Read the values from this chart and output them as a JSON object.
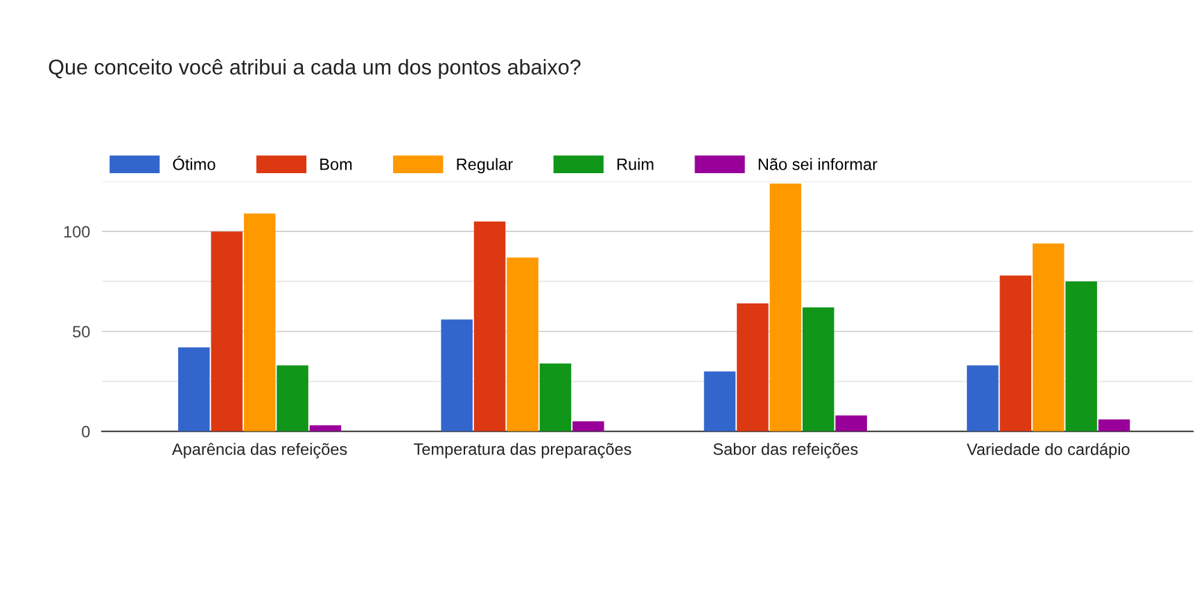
{
  "chart_data": {
    "type": "bar",
    "title": "Que conceito você atribui a cada um dos pontos abaixo?",
    "categories": [
      "Aparência das refeições",
      "Temperatura das preparações",
      "Sabor das refeições",
      "Variedade do cardápio"
    ],
    "series": [
      {
        "name": "Ótimo",
        "color": "#3366cc",
        "values": [
          42,
          56,
          30,
          33
        ]
      },
      {
        "name": "Bom",
        "color": "#dc3912",
        "values": [
          100,
          105,
          64,
          78
        ]
      },
      {
        "name": "Regular",
        "color": "#ff9900",
        "values": [
          109,
          87,
          124,
          94
        ]
      },
      {
        "name": "Ruim",
        "color": "#109618",
        "values": [
          33,
          34,
          62,
          75
        ]
      },
      {
        "name": "Não sei informar",
        "color": "#990099",
        "values": [
          3,
          5,
          8,
          6
        ]
      }
    ],
    "ylim": [
      0,
      125
    ],
    "yticks": [
      0,
      {
        "value": 25,
        "label": null
      },
      50,
      {
        "value": 75,
        "label": null
      },
      100,
      {
        "value": 125,
        "label": null
      }
    ],
    "grid": "y",
    "legend": "top left"
  }
}
